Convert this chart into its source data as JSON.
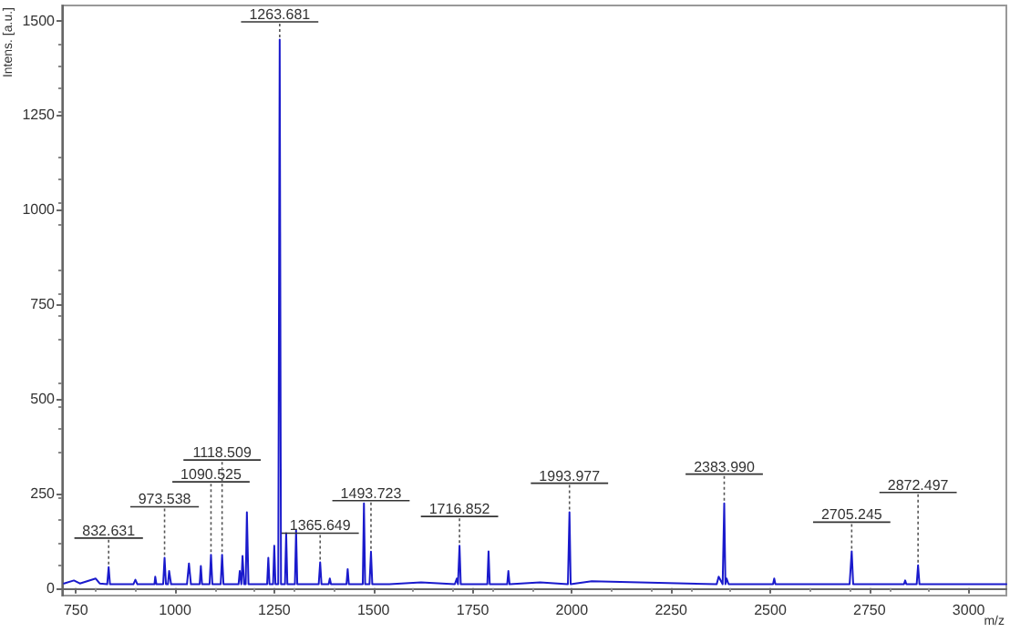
{
  "chart_data": {
    "type": "line",
    "xlabel": "m/z",
    "ylabel": "Intens. [a.u.]",
    "x": [
      720,
      745,
      760,
      800,
      810,
      829,
      832.631,
      836,
      895,
      900,
      905,
      948,
      950,
      953,
      970,
      973.538,
      977,
      982,
      985,
      990,
      1030,
      1035,
      1040,
      1062,
      1065,
      1068,
      1087,
      1090.525,
      1094,
      1115,
      1118.509,
      1122,
      1160,
      1163,
      1167,
      1170,
      1174,
      1178,
      1181,
      1185,
      1232,
      1235,
      1238,
      1247,
      1250,
      1253,
      1260,
      1263.681,
      1267,
      1277,
      1280,
      1283,
      1302,
      1305,
      1308,
      1362,
      1365.649,
      1369,
      1387,
      1390,
      1393,
      1432,
      1435,
      1438,
      1473,
      1476,
      1479,
      1490,
      1493.723,
      1497,
      1540,
      1620,
      1705,
      1710,
      1713,
      1716.852,
      1720,
      1787,
      1790,
      1793,
      1837,
      1840,
      1843,
      1920,
      1990,
      1993.977,
      1997,
      2050,
      2365,
      2370,
      2380,
      2383.99,
      2387,
      2390,
      2395,
      2507,
      2510,
      2513,
      2700,
      2705.245,
      2709,
      2837,
      2840,
      2843,
      2869,
      2872.497,
      2876,
      3095
    ],
    "values": [
      12,
      20,
      12,
      25,
      12,
      10,
      55,
      10,
      10,
      22,
      10,
      10,
      30,
      10,
      10,
      80,
      10,
      10,
      45,
      10,
      10,
      65,
      10,
      10,
      58,
      10,
      10,
      88,
      10,
      10,
      88,
      10,
      10,
      45,
      10,
      85,
      10,
      10,
      200,
      10,
      10,
      80,
      10,
      10,
      112,
      10,
      10,
      1450,
      10,
      10,
      145,
      10,
      10,
      152,
      10,
      10,
      68,
      10,
      10,
      25,
      10,
      10,
      50,
      10,
      10,
      224,
      10,
      10,
      96,
      10,
      10,
      15,
      10,
      25,
      10,
      112,
      10,
      10,
      97,
      10,
      10,
      45,
      10,
      15,
      10,
      200,
      10,
      18,
      10,
      30,
      10,
      224,
      10,
      25,
      10,
      10,
      25,
      10,
      10,
      97,
      10,
      10,
      20,
      10,
      10,
      60,
      10,
      10
    ],
    "color": "#1a1acc",
    "marker": "none",
    "line_style": "solid",
    "xlim": [
      715,
      3095
    ],
    "ylim": [
      -20,
      1540
    ],
    "xticks": [
      750,
      1000,
      1250,
      1500,
      1750,
      2000,
      2250,
      2500,
      2750,
      3000
    ],
    "yticks": [
      0,
      250,
      500,
      750,
      1000,
      1250,
      1500
    ],
    "annotations": [
      {
        "text": "832.631",
        "x": 832.631,
        "y": 55
      },
      {
        "text": "973.538",
        "x": 973.538,
        "y": 80
      },
      {
        "text": "1090.525",
        "x": 1090.525,
        "y": 88
      },
      {
        "text": "1118.509",
        "x": 1118.509,
        "y": 88
      },
      {
        "text": "1263.681",
        "x": 1263.681,
        "y": 1450
      },
      {
        "text": "1365.649",
        "x": 1365.649,
        "y": 68
      },
      {
        "text": "1493.723",
        "x": 1493.723,
        "y": 96
      },
      {
        "text": "1716.852",
        "x": 1716.852,
        "y": 112
      },
      {
        "text": "1993.977",
        "x": 1993.977,
        "y": 200
      },
      {
        "text": "2383.990",
        "x": 2383.99,
        "y": 224
      },
      {
        "text": "2705.245",
        "x": 2705.245,
        "y": 97
      },
      {
        "text": "2872.497",
        "x": 2872.497,
        "y": 60
      }
    ]
  }
}
